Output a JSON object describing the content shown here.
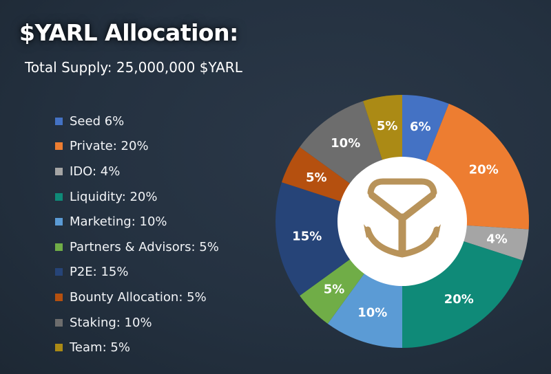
{
  "title": "$YARL Allocation:",
  "subtitle": "Total Supply: 25,000,000 $YARL",
  "legend": [
    {
      "label": "Seed 6%",
      "color": "#4472c4"
    },
    {
      "label": "Private: 20%",
      "color": "#ed7d31"
    },
    {
      "label": "IDO: 4%",
      "color": "#a5a5a5"
    },
    {
      "label": "Liquidity: 20%",
      "color": "#0f8a78"
    },
    {
      "label": "Marketing: 10%",
      "color": "#5b9bd5"
    },
    {
      "label": "Partners & Advisors: 5%",
      "color": "#70ad47"
    },
    {
      "label": "P2E: 15%",
      "color": "#264478"
    },
    {
      "label": "Bounty Allocation: 5%",
      "color": "#b5500f"
    },
    {
      "label": "Staking: 10%",
      "color": "#6d6d6d"
    },
    {
      "label": "Team:  5%",
      "color": "#ab8a15"
    }
  ],
  "chart_data": {
    "type": "pie",
    "title": "$YARL Allocation:",
    "subtitle": "Total Supply: 25,000,000 $YARL",
    "donut": true,
    "legend_position": "left",
    "slices": [
      {
        "label": "Seed",
        "value": 6,
        "display": "6%",
        "color": "#4472c4"
      },
      {
        "label": "Private",
        "value": 20,
        "display": "20%",
        "color": "#ed7d31"
      },
      {
        "label": "IDO",
        "value": 4,
        "display": "4%",
        "color": "#a5a5a5"
      },
      {
        "label": "Liquidity",
        "value": 20,
        "display": "20%",
        "color": "#0f8a78"
      },
      {
        "label": "Marketing",
        "value": 10,
        "display": "10%",
        "color": "#5b9bd5"
      },
      {
        "label": "Partners & Advisors",
        "value": 5,
        "display": "5%",
        "color": "#70ad47"
      },
      {
        "label": "P2E",
        "value": 15,
        "display": "15%",
        "color": "#264478"
      },
      {
        "label": "Bounty Allocation",
        "value": 5,
        "display": "5%",
        "color": "#b5500f"
      },
      {
        "label": "Staking",
        "value": 10,
        "display": "10%",
        "color": "#6d6d6d"
      },
      {
        "label": "Team",
        "value": 5,
        "display": "5%",
        "color": "#ab8a15"
      }
    ]
  },
  "logo": {
    "icon": "anchor-y-logo-icon",
    "color": "#b8935a"
  }
}
